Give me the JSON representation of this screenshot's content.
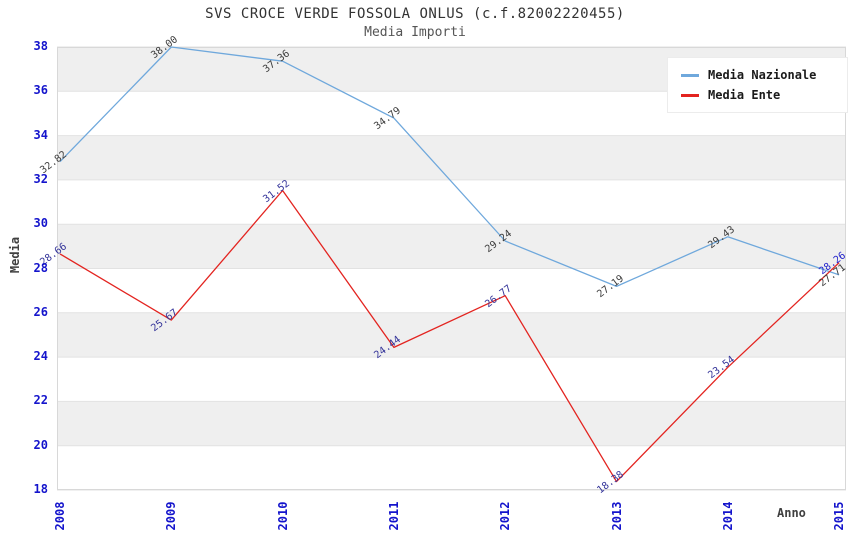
{
  "chart_data": {
    "type": "line",
    "title": "SVS CROCE VERDE FOSSOLA ONLUS (c.f.82002220455)",
    "subtitle": "Media Importi",
    "xlabel": "Anno",
    "ylabel": "Media",
    "x_ticks": [
      "2008",
      "2009",
      "2010",
      "2011",
      "2012",
      "2013",
      "2014",
      "2015"
    ],
    "y_ticks": [
      18,
      20,
      22,
      24,
      26,
      28,
      30,
      32,
      34,
      36,
      38
    ],
    "ylim": [
      18,
      38
    ],
    "ytick_step": 2,
    "grid": "alternating horizontal gray bands with light gridlines",
    "legend_position": "top-right",
    "series": [
      {
        "name": "Media Nazionale",
        "color": "#6fa8dc",
        "values": [
          32.82,
          38.0,
          37.36,
          34.79,
          29.24,
          27.19,
          29.43,
          27.71
        ],
        "labels": [
          "32.82",
          "38.00",
          "37.36",
          "34.79",
          "29.24",
          "27.19",
          "29.43",
          "27.71"
        ],
        "label_colors": [
          "#3c3c3c",
          "#3c3c3c",
          "#3c3c3c",
          "#3c3c3c",
          "#3c3c3c",
          "#3c3c3c",
          "#3c3c3c",
          "#3c3c3c"
        ]
      },
      {
        "name": "Media Ente",
        "color": "#e32420",
        "values": [
          28.66,
          25.67,
          31.52,
          24.44,
          26.77,
          18.38,
          23.54,
          28.26
        ],
        "labels": [
          "28.66",
          "25.67",
          "31.52",
          "24.44",
          "26.77",
          "18.38",
          "23.54",
          "28.26"
        ],
        "label_colors": [
          "#333399",
          "#333399",
          "#333399",
          "#333399",
          "#333399",
          "#333399",
          "#333399",
          "#2222cc"
        ]
      }
    ],
    "colors": {
      "band": "#efefef",
      "band_alt": "#ffffff",
      "grid": "#e2e2e2",
      "plot_border": "#d8d8d8",
      "axis_tick_text": "#1414cc",
      "axis_title_text": "#404040",
      "title_text": "#333333",
      "subtitle_text": "#555555"
    }
  }
}
